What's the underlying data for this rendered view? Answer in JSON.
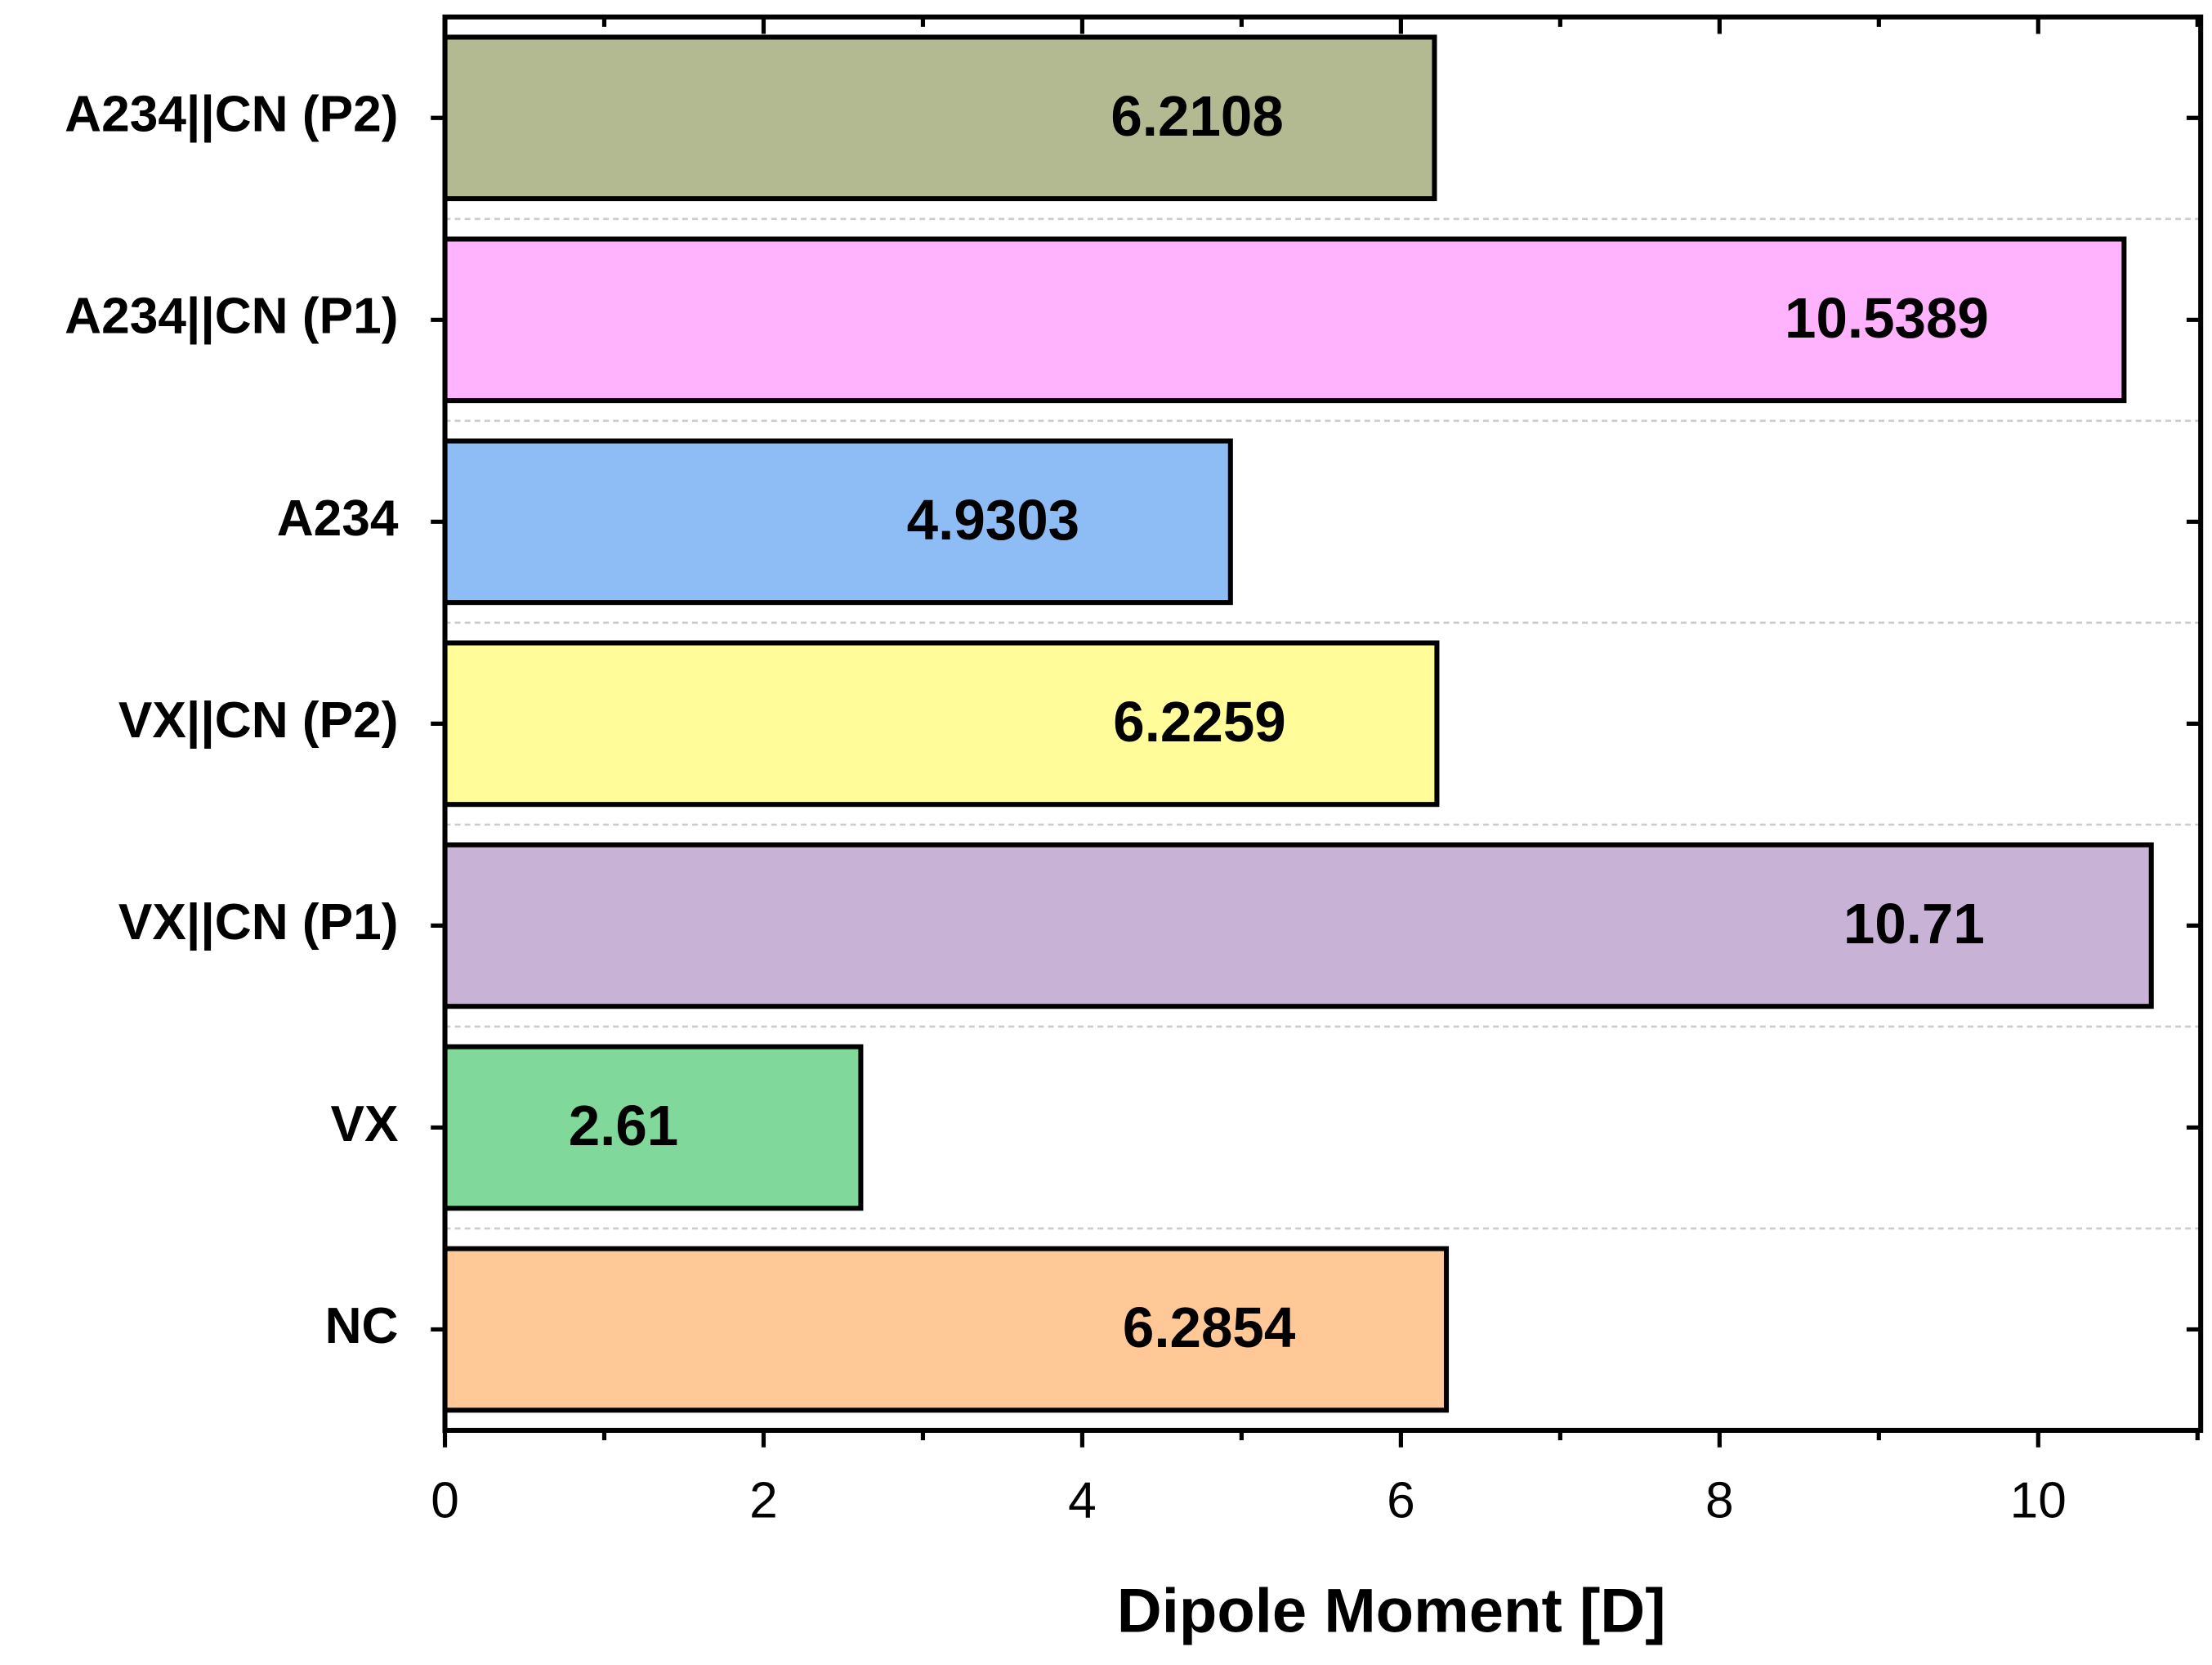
{
  "chart_data": {
    "type": "barh",
    "xlabel": "Dipole Moment [D]",
    "categories": [
      "A234||CN (P2)",
      "A234||CN (P1)",
      "A234",
      "VX||CN (P2)",
      "VX||CN (P1)",
      "VX",
      "NC"
    ],
    "values": [
      6.2108,
      10.5389,
      4.9303,
      6.2259,
      10.71,
      2.61,
      6.2854
    ],
    "colors": [
      "#b3b991",
      "#ffb3fc",
      "#8ebcf5",
      "#fffc99",
      "#c8b3d6",
      "#80d89a",
      "#ffc896"
    ],
    "xlim": [
      0,
      11.02
    ],
    "xticks": [
      0,
      2,
      4,
      6,
      8,
      10
    ],
    "xminorticks": [
      1,
      3,
      5,
      7,
      9,
      11
    ],
    "grid": true
  }
}
